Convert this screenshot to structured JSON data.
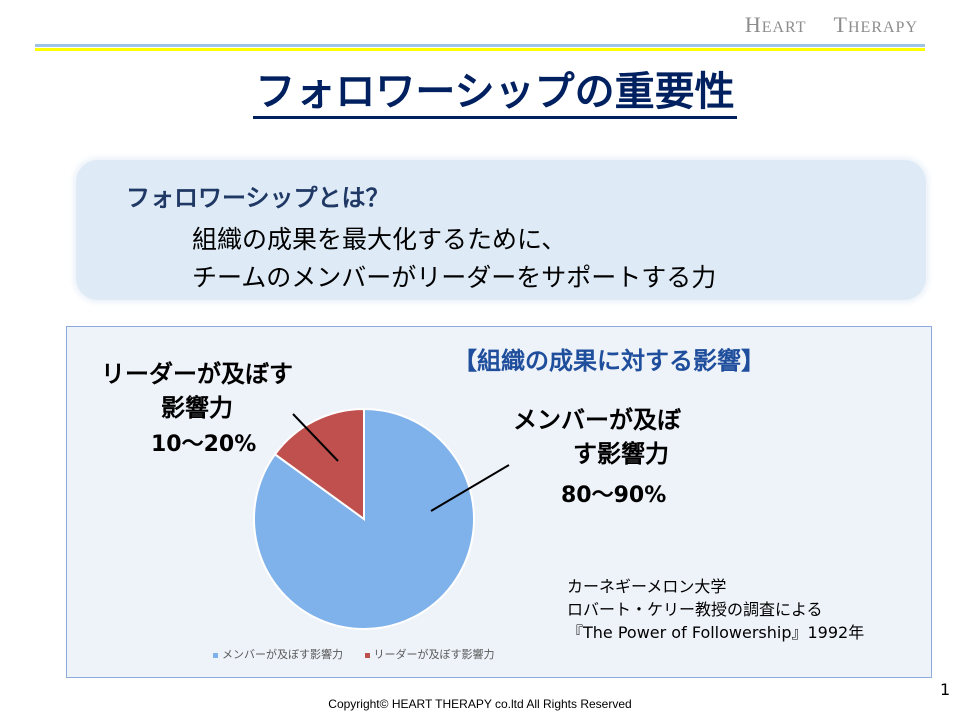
{
  "brand": {
    "h1": "H",
    "h2": "EART",
    "t1": "T",
    "t2": "HERAPY"
  },
  "title": "フォロワーシップの重要性",
  "definition": {
    "question": "フォロワーシップとは？",
    "answer_line1": "組織の成果を最大化するために、",
    "answer_line2": "チームのメンバーがリーダーをサポートする力"
  },
  "source": {
    "line1": "カーネギーメロン大学",
    "line2": "ロバート・ケリー教授の調査による",
    "line3": "『The Power of Followership』1992年"
  },
  "chart_data": {
    "type": "pie",
    "title": "【組織の成果に対する影響】",
    "slices": [
      {
        "name": "メンバーが及ぼす影響力",
        "value": 85,
        "color": "#7fb1ea",
        "label_line1": "メンバーが及ぼ",
        "label_line2": "す影響力",
        "label_pct": "80〜90%"
      },
      {
        "name": "リーダーが及ぼす影響力",
        "value": 15,
        "color": "#c0504d",
        "label_line1": "リーダーが及ぼす",
        "label_line2": "影響力",
        "label_pct": "10〜20%"
      }
    ],
    "legend_position": "bottom"
  },
  "page_number": "1",
  "copyright": "Copyright© HEART THERAPY co.ltd All Rights Reserved"
}
